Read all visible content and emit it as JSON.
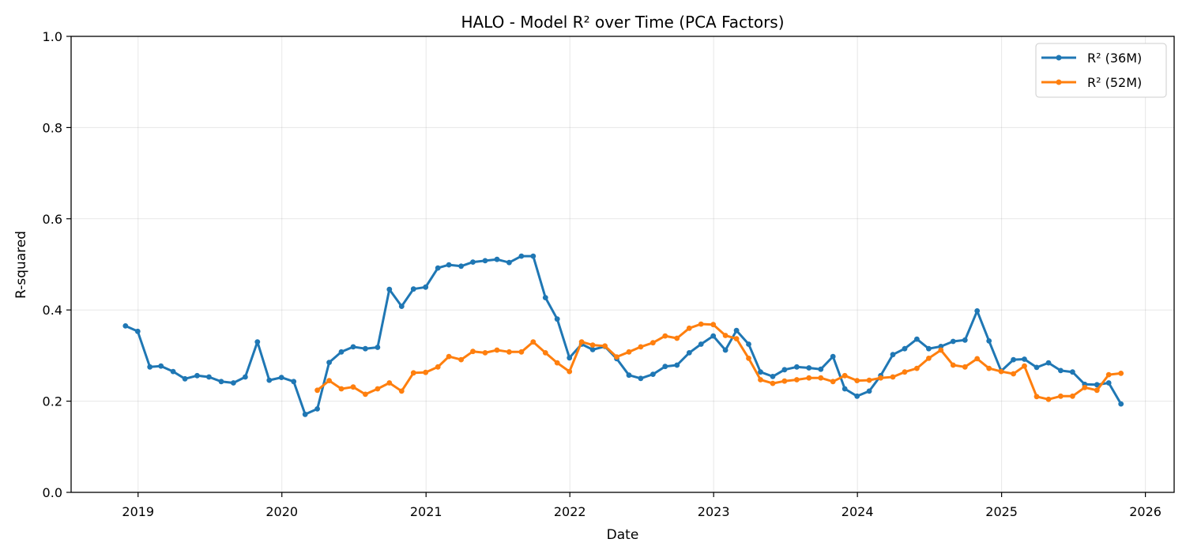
{
  "chart_data": {
    "type": "line",
    "title": "HALO - Model R² over Time (PCA Factors)",
    "xlabel": "Date",
    "ylabel": "R-squared",
    "x_ticks": [
      "2019",
      "2020",
      "2021",
      "2022",
      "2023",
      "2024",
      "2025",
      "2026"
    ],
    "y_ticks": [
      "0.0",
      "0.2",
      "0.4",
      "0.6",
      "0.8",
      "1.0"
    ],
    "xlim": [
      "2018-07-15",
      "2026-03-15"
    ],
    "ylim": [
      0,
      1
    ],
    "grid": true,
    "legend_position": "top-right",
    "series": [
      {
        "name": "R² (36M)",
        "color": "#1f77b4",
        "points": [
          [
            "2018-11-30",
            0.365
          ],
          [
            "2018-12-31",
            0.353
          ],
          [
            "2019-01-31",
            0.275
          ],
          [
            "2019-02-28",
            0.277
          ],
          [
            "2019-03-31",
            0.265
          ],
          [
            "2019-04-30",
            0.249
          ],
          [
            "2019-05-31",
            0.256
          ],
          [
            "2019-06-30",
            0.253
          ],
          [
            "2019-07-31",
            0.243
          ],
          [
            "2019-08-31",
            0.24
          ],
          [
            "2019-09-30",
            0.253
          ],
          [
            "2019-10-31",
            0.33
          ],
          [
            "2019-11-30",
            0.246
          ],
          [
            "2019-12-31",
            0.252
          ],
          [
            "2020-01-31",
            0.243
          ],
          [
            "2020-02-29",
            0.171
          ],
          [
            "2020-03-31",
            0.183
          ],
          [
            "2020-04-30",
            0.285
          ],
          [
            "2020-05-31",
            0.308
          ],
          [
            "2020-06-30",
            0.319
          ],
          [
            "2020-07-31",
            0.315
          ],
          [
            "2020-08-31",
            0.318
          ],
          [
            "2020-09-30",
            0.445
          ],
          [
            "2020-10-31",
            0.408
          ],
          [
            "2020-11-30",
            0.446
          ],
          [
            "2020-12-31",
            0.45
          ],
          [
            "2021-01-31",
            0.492
          ],
          [
            "2021-02-28",
            0.499
          ],
          [
            "2021-03-31",
            0.496
          ],
          [
            "2021-04-30",
            0.505
          ],
          [
            "2021-05-31",
            0.508
          ],
          [
            "2021-06-30",
            0.511
          ],
          [
            "2021-07-31",
            0.504
          ],
          [
            "2021-08-31",
            0.518
          ],
          [
            "2021-09-30",
            0.518
          ],
          [
            "2021-10-31",
            0.427
          ],
          [
            "2021-11-30",
            0.38
          ],
          [
            "2021-12-31",
            0.295
          ],
          [
            "2022-01-31",
            0.325
          ],
          [
            "2022-02-28",
            0.313
          ],
          [
            "2022-03-31",
            0.32
          ],
          [
            "2022-04-30",
            0.293
          ],
          [
            "2022-05-31",
            0.257
          ],
          [
            "2022-06-30",
            0.25
          ],
          [
            "2022-07-31",
            0.259
          ],
          [
            "2022-08-31",
            0.276
          ],
          [
            "2022-09-30",
            0.279
          ],
          [
            "2022-10-31",
            0.306
          ],
          [
            "2022-11-30",
            0.325
          ],
          [
            "2022-12-31",
            0.343
          ],
          [
            "2023-01-31",
            0.312
          ],
          [
            "2023-02-28",
            0.355
          ],
          [
            "2023-03-31",
            0.325
          ],
          [
            "2023-04-30",
            0.264
          ],
          [
            "2023-05-31",
            0.254
          ],
          [
            "2023-06-30",
            0.269
          ],
          [
            "2023-07-31",
            0.275
          ],
          [
            "2023-08-31",
            0.273
          ],
          [
            "2023-09-30",
            0.27
          ],
          [
            "2023-10-31",
            0.298
          ],
          [
            "2023-11-30",
            0.227
          ],
          [
            "2023-12-31",
            0.211
          ],
          [
            "2024-01-31",
            0.222
          ],
          [
            "2024-02-29",
            0.256
          ],
          [
            "2024-03-31",
            0.302
          ],
          [
            "2024-04-30",
            0.315
          ],
          [
            "2024-05-31",
            0.336
          ],
          [
            "2024-06-30",
            0.315
          ],
          [
            "2024-07-31",
            0.32
          ],
          [
            "2024-08-31",
            0.331
          ],
          [
            "2024-09-30",
            0.334
          ],
          [
            "2024-10-31",
            0.398
          ],
          [
            "2024-11-30",
            0.332
          ],
          [
            "2024-12-31",
            0.266
          ],
          [
            "2025-01-31",
            0.291
          ],
          [
            "2025-02-28",
            0.292
          ],
          [
            "2025-03-31",
            0.274
          ],
          [
            "2025-04-30",
            0.284
          ],
          [
            "2025-05-31",
            0.267
          ],
          [
            "2025-06-30",
            0.264
          ],
          [
            "2025-07-31",
            0.237
          ],
          [
            "2025-08-31",
            0.236
          ],
          [
            "2025-09-30",
            0.24
          ],
          [
            "2025-10-31",
            0.194
          ]
        ]
      },
      {
        "name": "R² (52M)",
        "color": "#ff7f0e",
        "points": [
          [
            "2020-03-31",
            0.224
          ],
          [
            "2020-04-30",
            0.245
          ],
          [
            "2020-05-31",
            0.227
          ],
          [
            "2020-06-30",
            0.231
          ],
          [
            "2020-07-31",
            0.215
          ],
          [
            "2020-08-31",
            0.227
          ],
          [
            "2020-09-30",
            0.24
          ],
          [
            "2020-10-31",
            0.222
          ],
          [
            "2020-11-30",
            0.262
          ],
          [
            "2020-12-31",
            0.263
          ],
          [
            "2021-01-31",
            0.275
          ],
          [
            "2021-02-28",
            0.298
          ],
          [
            "2021-03-31",
            0.291
          ],
          [
            "2021-04-30",
            0.309
          ],
          [
            "2021-05-31",
            0.306
          ],
          [
            "2021-06-30",
            0.312
          ],
          [
            "2021-07-31",
            0.308
          ],
          [
            "2021-08-31",
            0.308
          ],
          [
            "2021-09-30",
            0.33
          ],
          [
            "2021-10-31",
            0.306
          ],
          [
            "2021-11-30",
            0.284
          ],
          [
            "2021-12-31",
            0.265
          ],
          [
            "2022-01-31",
            0.33
          ],
          [
            "2022-02-28",
            0.323
          ],
          [
            "2022-03-31",
            0.321
          ],
          [
            "2022-04-30",
            0.297
          ],
          [
            "2022-05-31",
            0.308
          ],
          [
            "2022-06-30",
            0.319
          ],
          [
            "2022-07-31",
            0.328
          ],
          [
            "2022-08-31",
            0.343
          ],
          [
            "2022-09-30",
            0.338
          ],
          [
            "2022-10-31",
            0.36
          ],
          [
            "2022-11-30",
            0.369
          ],
          [
            "2022-12-31",
            0.368
          ],
          [
            "2023-01-31",
            0.344
          ],
          [
            "2023-02-28",
            0.337
          ],
          [
            "2023-03-31",
            0.294
          ],
          [
            "2023-04-30",
            0.247
          ],
          [
            "2023-05-31",
            0.239
          ],
          [
            "2023-06-30",
            0.244
          ],
          [
            "2023-07-31",
            0.247
          ],
          [
            "2023-08-31",
            0.251
          ],
          [
            "2023-09-30",
            0.251
          ],
          [
            "2023-10-31",
            0.243
          ],
          [
            "2023-11-30",
            0.256
          ],
          [
            "2023-12-31",
            0.245
          ],
          [
            "2024-01-31",
            0.246
          ],
          [
            "2024-02-29",
            0.251
          ],
          [
            "2024-03-31",
            0.253
          ],
          [
            "2024-04-30",
            0.264
          ],
          [
            "2024-05-31",
            0.272
          ],
          [
            "2024-06-30",
            0.294
          ],
          [
            "2024-07-31",
            0.312
          ],
          [
            "2024-08-31",
            0.279
          ],
          [
            "2024-09-30",
            0.275
          ],
          [
            "2024-10-31",
            0.293
          ],
          [
            "2024-11-30",
            0.272
          ],
          [
            "2024-12-31",
            0.265
          ],
          [
            "2025-01-31",
            0.26
          ],
          [
            "2025-02-28",
            0.277
          ],
          [
            "2025-03-31",
            0.21
          ],
          [
            "2025-04-30",
            0.204
          ],
          [
            "2025-05-31",
            0.211
          ],
          [
            "2025-06-30",
            0.211
          ],
          [
            "2025-07-31",
            0.23
          ],
          [
            "2025-08-31",
            0.224
          ],
          [
            "2025-09-30",
            0.258
          ],
          [
            "2025-10-31",
            0.261
          ]
        ]
      }
    ]
  }
}
